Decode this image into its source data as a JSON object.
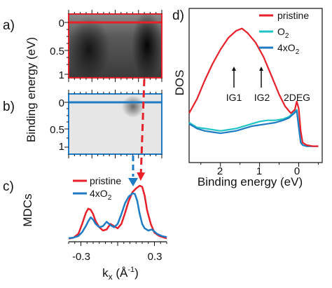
{
  "panel_labels": {
    "a": "a)",
    "b": "b)",
    "c": "c)",
    "d": "d)"
  },
  "colors": {
    "pristine": "#e8202a",
    "o2": "#20c4c4",
    "fourx": "#1f7cc4"
  },
  "chart_data": [
    {
      "panel": "a",
      "type": "heatmap",
      "title": "",
      "ylabel_shared": "Binding energy (eV)",
      "yticks": [
        "0",
        "0.5",
        "1"
      ],
      "ylim": [
        1.1,
        -0.1
      ],
      "xlim": [
        -0.4,
        0.4
      ],
      "features": {
        "horizontal_cut_eV": 0,
        "band_centers_kx": [
          -0.22,
          0.2
        ]
      }
    },
    {
      "panel": "b",
      "type": "heatmap",
      "title": "",
      "yticks": [
        "0",
        "0.5",
        "1"
      ],
      "ylim": [
        1.1,
        -0.1
      ],
      "xlim": [
        -0.4,
        0.4
      ],
      "features": {
        "horizontal_cut_eV": 0,
        "band_centers_kx": [
          0.14
        ]
      }
    },
    {
      "panel": "c",
      "type": "line",
      "ylabel": "MDCs",
      "xlabel_main": "k",
      "xlabel_sub": "x",
      "xlabel_unit": " (Å",
      "xlabel_exp": "-1",
      "xlabel_close": ")",
      "xticks": [
        "-0.3",
        "0.3"
      ],
      "xtick_vals": [
        -0.3,
        0.3
      ],
      "xlim": [
        -0.4,
        0.4
      ],
      "legend": [
        "pristine",
        "4xO"
      ],
      "legend_sub": "2",
      "series": [
        {
          "name": "pristine",
          "x": [
            -0.4,
            -0.36,
            -0.32,
            -0.29,
            -0.26,
            -0.24,
            -0.22,
            -0.2,
            -0.18,
            -0.15,
            -0.12,
            -0.09,
            -0.06,
            -0.03,
            0.0,
            0.03,
            0.06,
            0.09,
            0.12,
            0.15,
            0.18,
            0.2,
            0.22,
            0.24,
            0.27,
            0.3,
            0.34,
            0.38,
            0.4
          ],
          "y": [
            0.03,
            0.05,
            0.12,
            0.3,
            0.5,
            0.58,
            0.56,
            0.48,
            0.35,
            0.24,
            0.18,
            0.2,
            0.3,
            0.26,
            0.22,
            0.3,
            0.5,
            0.72,
            0.88,
            0.95,
            1.0,
            0.98,
            0.82,
            0.55,
            0.3,
            0.14,
            0.08,
            0.05,
            0.04
          ]
        },
        {
          "name": "4xO2",
          "x": [
            -0.4,
            -0.36,
            -0.32,
            -0.29,
            -0.26,
            -0.24,
            -0.22,
            -0.2,
            -0.18,
            -0.15,
            -0.12,
            -0.09,
            -0.06,
            -0.03,
            0.0,
            0.03,
            0.06,
            0.09,
            0.12,
            0.14,
            0.16,
            0.18,
            0.2,
            0.22,
            0.25,
            0.28,
            0.32,
            0.36,
            0.4
          ],
          "y": [
            0.04,
            0.05,
            0.08,
            0.15,
            0.26,
            0.35,
            0.42,
            0.38,
            0.3,
            0.24,
            0.26,
            0.34,
            0.28,
            0.24,
            0.3,
            0.48,
            0.68,
            0.8,
            0.86,
            0.85,
            0.72,
            0.48,
            0.3,
            0.22,
            0.18,
            0.2,
            0.12,
            0.08,
            0.06
          ]
        }
      ]
    },
    {
      "panel": "d",
      "type": "line",
      "ylabel": "DOS",
      "xlabel": "Binding energy (eV)",
      "xticks": [
        "2",
        "1",
        "0"
      ],
      "xtick_vals": [
        2,
        1,
        0
      ],
      "xlim": [
        2.8,
        -0.6
      ],
      "legend": [
        "pristine",
        "O",
        "4xO"
      ],
      "legend_sub": "2",
      "annotations": [
        "IG1",
        "IG2",
        "2DEG"
      ],
      "annotation_x": [
        1.45,
        0.95,
        0.05
      ],
      "series": [
        {
          "name": "pristine",
          "x": [
            2.8,
            2.6,
            2.4,
            2.2,
            2.0,
            1.8,
            1.6,
            1.45,
            1.3,
            1.1,
            0.9,
            0.7,
            0.5,
            0.35,
            0.2,
            0.1,
            0.05,
            0.0,
            -0.05,
            -0.1,
            -0.2,
            -0.35,
            -0.5
          ],
          "y": [
            0.3,
            0.42,
            0.58,
            0.72,
            0.84,
            0.94,
            1.0,
            1.02,
            0.98,
            0.9,
            0.78,
            0.62,
            0.46,
            0.36,
            0.3,
            0.33,
            0.4,
            0.34,
            0.15,
            0.05,
            0.03,
            0.02,
            0.02
          ]
        },
        {
          "name": "O2",
          "x": [
            2.8,
            2.6,
            2.4,
            2.2,
            2.0,
            1.8,
            1.6,
            1.4,
            1.2,
            1.0,
            0.8,
            0.6,
            0.4,
            0.25,
            0.15,
            0.05,
            0.0,
            -0.05,
            -0.1,
            -0.2,
            -0.35,
            -0.5
          ],
          "y": [
            0.22,
            0.18,
            0.17,
            0.16,
            0.15,
            0.16,
            0.17,
            0.19,
            0.21,
            0.23,
            0.24,
            0.24,
            0.25,
            0.27,
            0.3,
            0.33,
            0.2,
            0.06,
            0.03,
            0.02,
            0.02,
            0.02
          ]
        },
        {
          "name": "4xO2",
          "x": [
            2.8,
            2.6,
            2.4,
            2.2,
            2.0,
            1.8,
            1.6,
            1.4,
            1.2,
            1.0,
            0.8,
            0.6,
            0.4,
            0.25,
            0.15,
            0.05,
            0.0,
            -0.05,
            -0.1,
            -0.2,
            -0.35,
            -0.5
          ],
          "y": [
            0.21,
            0.17,
            0.15,
            0.14,
            0.13,
            0.14,
            0.15,
            0.17,
            0.19,
            0.2,
            0.21,
            0.22,
            0.24,
            0.26,
            0.29,
            0.32,
            0.18,
            0.05,
            0.03,
            0.02,
            0.02,
            0.02
          ]
        }
      ]
    }
  ]
}
